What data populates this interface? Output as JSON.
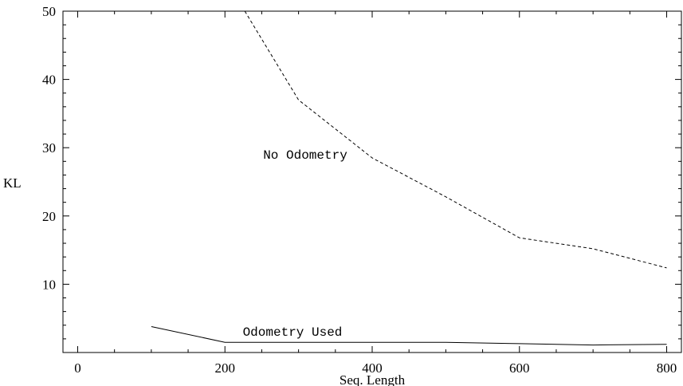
{
  "chart_data": {
    "type": "line",
    "title": "",
    "xlabel": "Seq. Length",
    "ylabel": "KL",
    "xlim": [
      -20,
      820
    ],
    "ylim": [
      0,
      50
    ],
    "xticks": [
      0,
      200,
      400,
      600,
      800
    ],
    "xtick_labels": [
      "0",
      "200",
      "400",
      "600",
      "800"
    ],
    "yticks": [
      10,
      20,
      30,
      40,
      50
    ],
    "ytick_labels": [
      "10",
      "20",
      "30",
      "40",
      "50"
    ],
    "grid": false,
    "series": [
      {
        "name": "No Odometry",
        "style": "dashed",
        "x": [
          227,
          300,
          400,
          500,
          600,
          700,
          800
        ],
        "y": [
          50,
          37,
          28.5,
          22.8,
          16.8,
          15.2,
          12.4
        ]
      },
      {
        "name": "Odometry Used",
        "style": "solid",
        "x": [
          100,
          200,
          300,
          400,
          500,
          600,
          700,
          800
        ],
        "y": [
          3.8,
          1.5,
          1.5,
          1.5,
          1.5,
          1.3,
          1.1,
          1.2
        ]
      }
    ]
  }
}
